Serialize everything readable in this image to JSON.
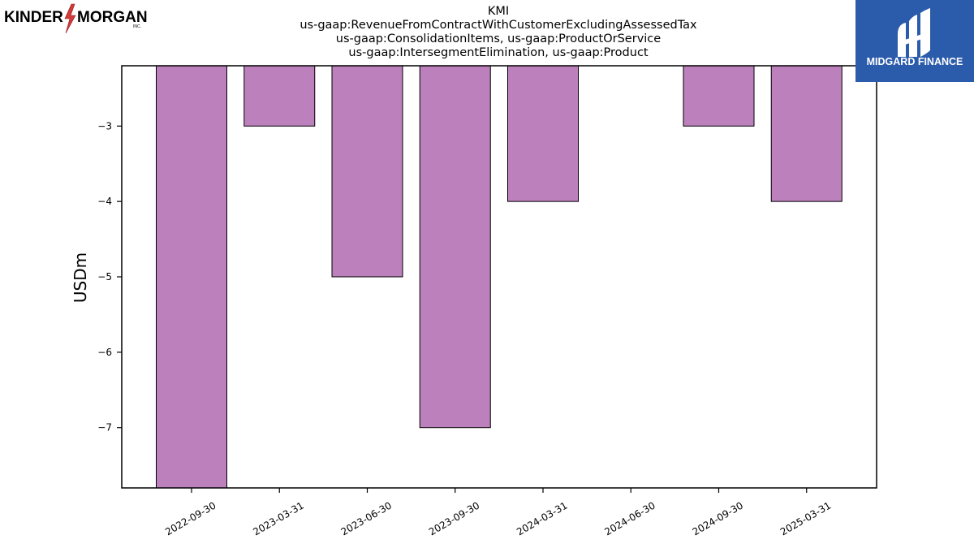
{
  "brand": {
    "left_logo_text": [
      "KINDER",
      "MORGAN",
      "INC."
    ],
    "right_logo_text": "MIDGARD FINANCE",
    "right_logo_color": "#2b5bab"
  },
  "chart_data": {
    "type": "bar",
    "title_lines": [
      "KMI",
      "us-gaap:RevenueFromContractWithCustomerExcludingAssessedTax",
      "us-gaap:ConsolidationItems, us-gaap:ProductOrService",
      "us-gaap:IntersegmentElimination, us-gaap:Product"
    ],
    "xlabel": "",
    "ylabel": "USDm",
    "categories": [
      "2022-09-30",
      "2023-03-31",
      "2023-06-30",
      "2023-09-30",
      "2024-03-31",
      "2024-06-30",
      "2024-09-30",
      "2025-03-31"
    ],
    "values": [
      -7.8,
      -3,
      -5,
      -7,
      -4,
      -2.2,
      -3,
      -4
    ],
    "yticks": [
      -3,
      -4,
      -5,
      -6,
      -7
    ],
    "ylim": [
      -7.8,
      -2.2
    ],
    "bar_color": "#bc80bd",
    "bar_edge_color": "#000000",
    "grid": false,
    "legend": "none"
  }
}
